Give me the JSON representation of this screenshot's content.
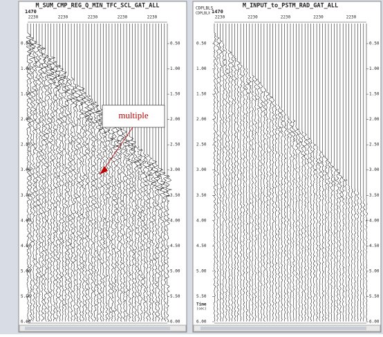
{
  "panels": [
    {
      "title": "M_SUM_CMP_REG_Q_MIN_TFC_SCL_GAT_ALL",
      "header_left": "",
      "header_left2": "",
      "first_label": "1470",
      "top_labels": [
        "2230",
        "2230",
        "2230",
        "2230",
        "2230"
      ],
      "time_labels": [
        "0.50",
        "1.00",
        "1.50",
        "2.00",
        "2.50",
        "3.00",
        "3.50",
        "4.00",
        "4.50",
        "5.00",
        "5.50",
        "6.00"
      ]
    },
    {
      "title": "M_INPUT_to_PSTM_RAD_GAT_ALL",
      "header_left": "CDPLBLS",
      "header_left2": "CDPLBLX",
      "first_label": "1470",
      "top_labels": [
        "2230",
        "2230",
        "2230",
        "2230",
        "2230"
      ],
      "time_labels": [
        "0.50",
        "1.00",
        "1.50",
        "2.00",
        "2.50",
        "3.00",
        "3.50",
        "4.00",
        "4.50",
        "5.00",
        "5.50",
        "6.00"
      ],
      "axis_title": "Time",
      "axis_unit": "(sec)"
    }
  ],
  "annotation": {
    "text": "multiple"
  }
}
